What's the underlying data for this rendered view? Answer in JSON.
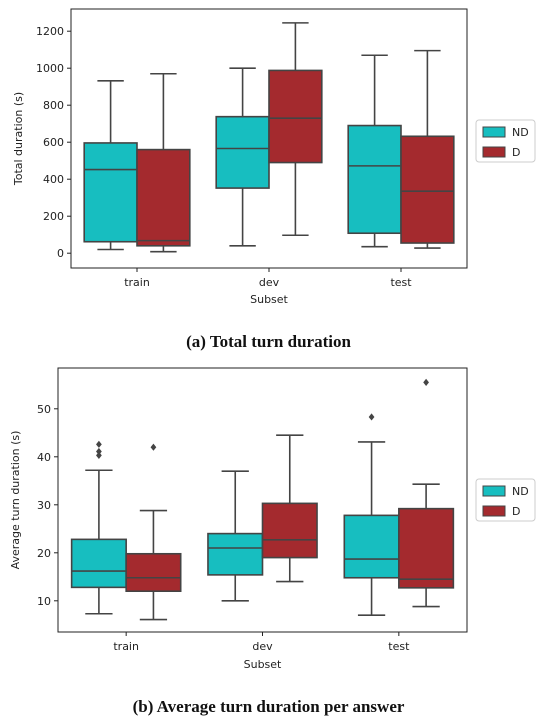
{
  "captions": {
    "a": "(a) Total turn duration",
    "b": "(b) Average turn duration per answer"
  },
  "colors": {
    "ND": "#17bec0",
    "D": "#a42a2e",
    "line": "#444444",
    "frame": "#222222"
  },
  "chart_data": [
    {
      "type": "box",
      "title": "",
      "xlabel": "Subset",
      "ylabel": "Total duration (s)",
      "categories": [
        "train",
        "dev",
        "test"
      ],
      "ylim": [
        -80,
        1320
      ],
      "yticks": [
        0,
        200,
        400,
        600,
        800,
        1000,
        1200
      ],
      "legend": "right",
      "series": [
        {
          "name": "ND",
          "boxes": [
            {
              "min": 20,
              "q1": 62,
              "median": 452,
              "q3": 596,
              "max": 932,
              "outliers": []
            },
            {
              "min": 40,
              "q1": 352,
              "median": 566,
              "q3": 738,
              "max": 1000,
              "outliers": []
            },
            {
              "min": 35,
              "q1": 108,
              "median": 472,
              "q3": 690,
              "max": 1070,
              "outliers": []
            }
          ]
        },
        {
          "name": "D",
          "boxes": [
            {
              "min": 8,
              "q1": 40,
              "median": 68,
              "q3": 560,
              "max": 970,
              "outliers": []
            },
            {
              "min": 97,
              "q1": 490,
              "median": 730,
              "q3": 988,
              "max": 1245,
              "outliers": []
            },
            {
              "min": 28,
              "q1": 55,
              "median": 335,
              "q3": 632,
              "max": 1095,
              "outliers": []
            }
          ]
        }
      ]
    },
    {
      "type": "box",
      "title": "",
      "xlabel": "Subset",
      "ylabel": "Average turn duration (s)",
      "categories": [
        "train",
        "dev",
        "test"
      ],
      "ylim": [
        3.5,
        58.5
      ],
      "yticks": [
        10,
        20,
        30,
        40,
        50
      ],
      "legend": "right",
      "series": [
        {
          "name": "ND",
          "boxes": [
            {
              "min": 7.3,
              "q1": 12.8,
              "median": 16.2,
              "q3": 22.8,
              "max": 37.2,
              "outliers": [
                40.3,
                41.1,
                42.6
              ]
            },
            {
              "min": 10.0,
              "q1": 15.4,
              "median": 21.0,
              "q3": 24.0,
              "max": 37.0,
              "outliers": []
            },
            {
              "min": 7.0,
              "q1": 14.8,
              "median": 18.7,
              "q3": 27.8,
              "max": 43.1,
              "outliers": [
                48.3
              ]
            }
          ]
        },
        {
          "name": "D",
          "boxes": [
            {
              "min": 6.1,
              "q1": 12.0,
              "median": 14.8,
              "q3": 19.8,
              "max": 28.8,
              "outliers": [
                42.0
              ]
            },
            {
              "min": 14.0,
              "q1": 19.0,
              "median": 22.7,
              "q3": 30.3,
              "max": 44.5,
              "outliers": []
            },
            {
              "min": 8.8,
              "q1": 12.7,
              "median": 14.5,
              "q3": 29.2,
              "max": 34.3,
              "outliers": [
                55.5
              ]
            }
          ]
        }
      ]
    }
  ]
}
